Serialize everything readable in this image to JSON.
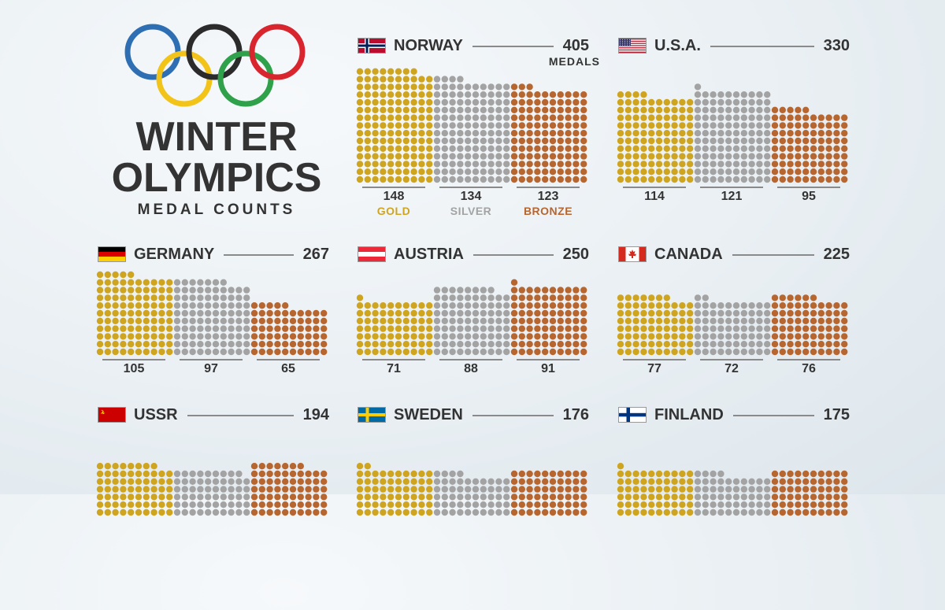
{
  "title": {
    "line1": "WINTER",
    "line2": "OLYMPICS",
    "subtitle": "MEDAL COUNTS"
  },
  "colors": {
    "gold": "#cfa51f",
    "silver": "#a3a3a3",
    "bronze": "#b8662f",
    "ring_blue": "#2e6fb3",
    "ring_black": "#2b2b2b",
    "ring_red": "#d9262e",
    "ring_yellow": "#f2c318",
    "ring_green": "#2fa14a"
  },
  "legend": {
    "gold": "GOLD",
    "silver": "SILVER",
    "bronze": "BRONZE"
  },
  "total_unit": "MEDALS",
  "chart_data": {
    "type": "dot-matrix",
    "title": "WINTER OLYMPICS MEDAL COUNTS",
    "series": [
      "GOLD",
      "SILVER",
      "BRONZE"
    ],
    "countries": [
      {
        "name": "NORWAY",
        "flag": "norway-flag-icon",
        "total": 405,
        "gold": 148,
        "silver": 134,
        "bronze": 123
      },
      {
        "name": "U.S.A.",
        "flag": "usa-flag-icon",
        "total": 330,
        "gold": 114,
        "silver": 121,
        "bronze": 95
      },
      {
        "name": "GERMANY",
        "flag": "germany-flag-icon",
        "total": 267,
        "gold": 105,
        "silver": 97,
        "bronze": 65
      },
      {
        "name": "AUSTRIA",
        "flag": "austria-flag-icon",
        "total": 250,
        "gold": 71,
        "silver": 88,
        "bronze": 91
      },
      {
        "name": "CANADA",
        "flag": "canada-flag-icon",
        "total": 225,
        "gold": 77,
        "silver": 72,
        "bronze": 76
      },
      {
        "name": "USSR",
        "flag": "ussr-flag-icon",
        "total": 194
      },
      {
        "name": "SWEDEN",
        "flag": "sweden-flag-icon",
        "total": 176
      },
      {
        "name": "FINLAND",
        "flag": "finland-flag-icon",
        "total": 175
      }
    ]
  }
}
